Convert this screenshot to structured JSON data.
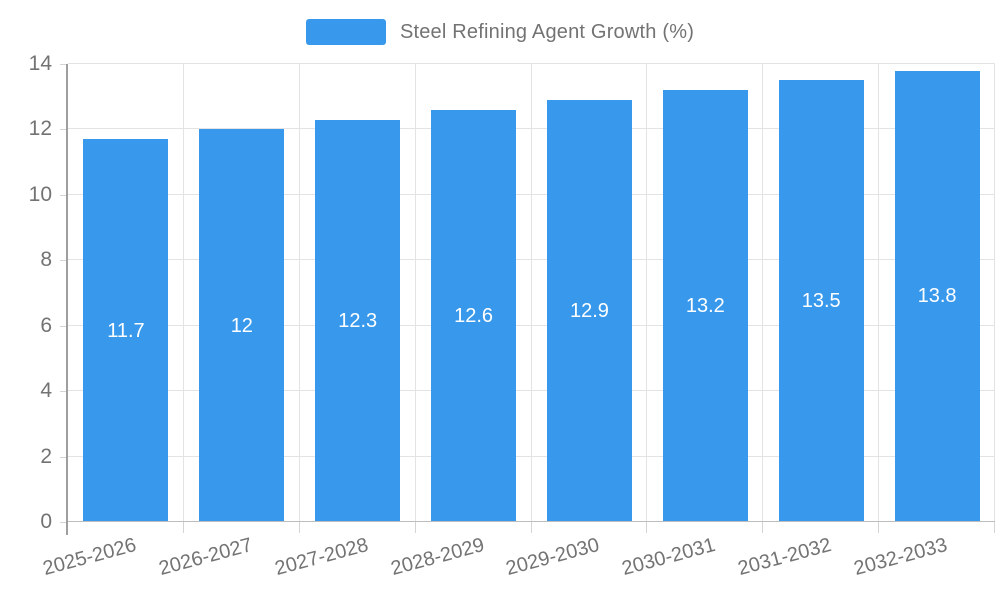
{
  "legend": {
    "series_label": "Steel Refining Agent Growth (%)"
  },
  "chart_data": {
    "type": "bar",
    "title": "Steel Refining Agent Growth (%)",
    "legend_position": "top",
    "grid": true,
    "categories": [
      "2025-2026",
      "2026-2027",
      "2027-2028",
      "2028-2029",
      "2029-2030",
      "2030-2031",
      "2031-2032",
      "2032-2033"
    ],
    "values": [
      11.7,
      12,
      12.3,
      12.6,
      12.9,
      13.2,
      13.5,
      13.8
    ],
    "xlabel": "",
    "ylabel": "",
    "ylim": [
      0,
      14
    ],
    "ytick_step": 2,
    "ytick_labels": [
      "0",
      "2",
      "4",
      "6",
      "8",
      "10",
      "12",
      "14"
    ],
    "colors": {
      "bar": "#3899EC",
      "value_label": "#FFFFFF",
      "axis_text": "#737373",
      "gridline": "#E3E3E3",
      "y_axis_line": "#9E9E9E",
      "x_axis_line": "#BDBDBD",
      "background": "#FFFFFF"
    }
  }
}
